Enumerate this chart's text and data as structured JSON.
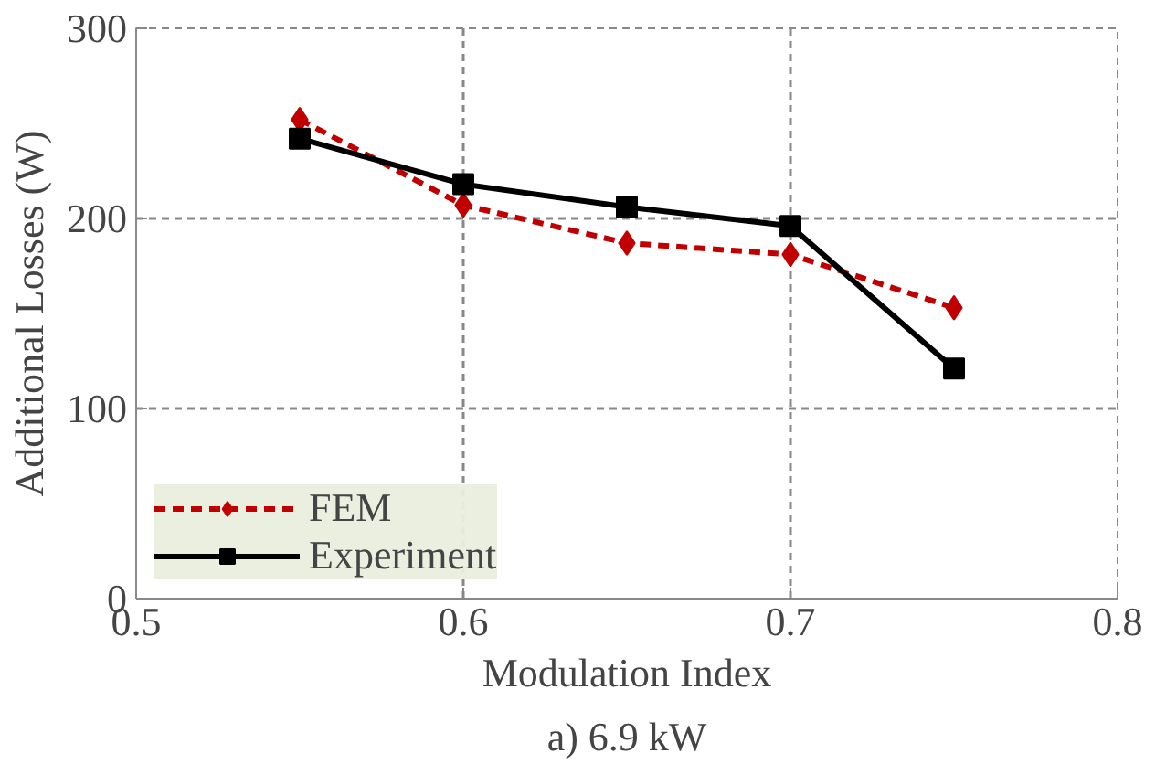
{
  "chart_data": {
    "type": "line",
    "title": "a) 6.9 kW",
    "xlabel": "Modulation Index",
    "ylabel": "Additional Losses (W)",
    "x": [
      0.55,
      0.6,
      0.65,
      0.7,
      0.75
    ],
    "series": [
      {
        "name": "FEM",
        "color": "#c00000",
        "values": [
          252,
          207,
          187,
          181,
          153
        ],
        "marker": "diamond",
        "line_style": "dashed"
      },
      {
        "name": "Experiment",
        "color": "#000000",
        "values": [
          242,
          218,
          206,
          196,
          121
        ],
        "marker": "square",
        "line_style": "solid"
      }
    ],
    "xlim": [
      0.5,
      0.8
    ],
    "xticks": [
      0.5,
      0.6,
      0.7,
      0.8
    ],
    "ylim": [
      0,
      300
    ],
    "yticks": [
      0,
      100,
      200,
      300
    ],
    "grid": true,
    "legend": "bottom left"
  }
}
